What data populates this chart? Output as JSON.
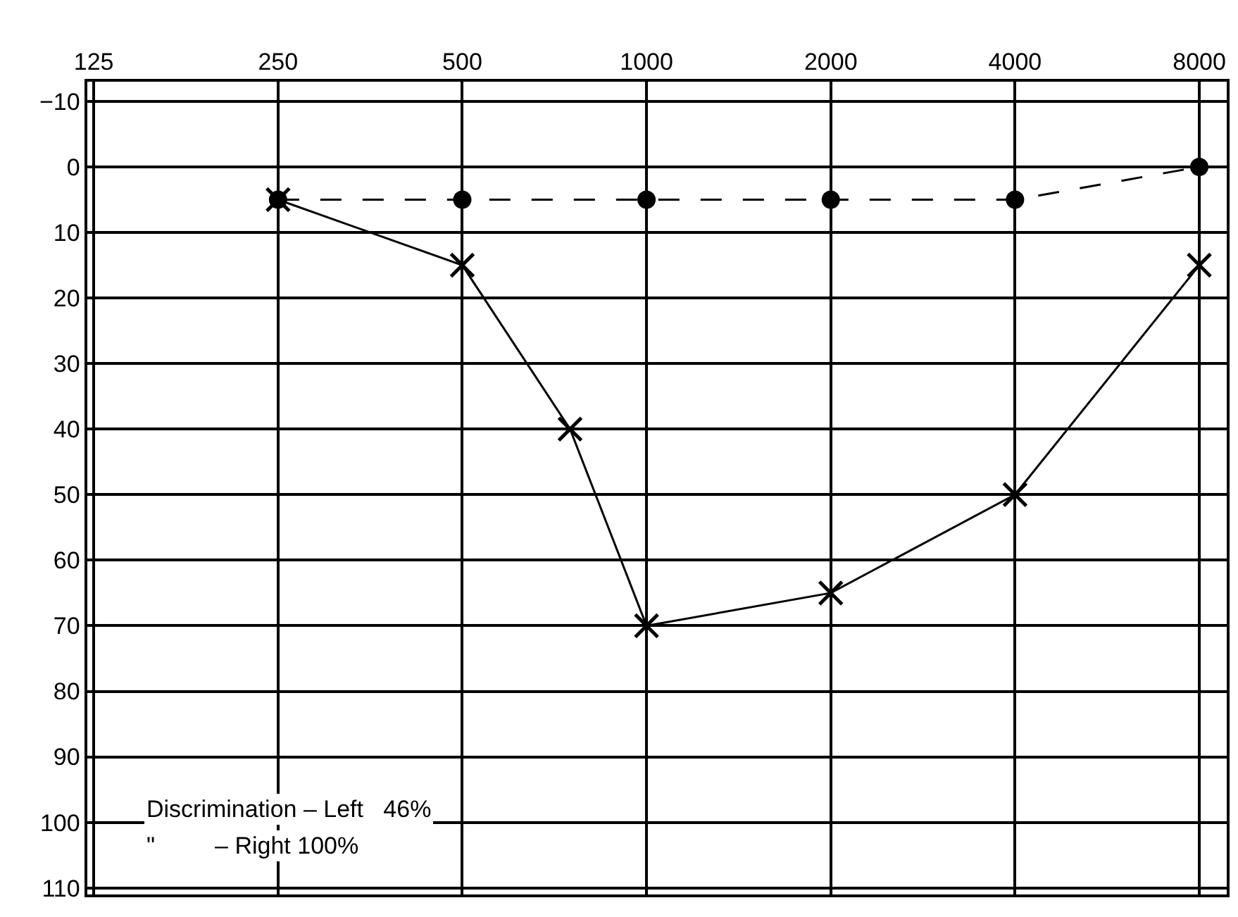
{
  "chart_data": {
    "type": "line",
    "x": [
      250,
      500,
      1000,
      2000,
      4000,
      8000
    ],
    "series": [
      {
        "color": "#000000",
        "marker": "circle",
        "line_style": "dashed",
        "values": [
          5,
          5,
          5,
          5,
          5,
          0
        ]
      },
      {
        "color": "#000000",
        "marker": "cross",
        "line_style": "solid",
        "x": [
          250,
          500,
          750,
          1000,
          2000,
          4000,
          8000
        ],
        "values": [
          5,
          15,
          40,
          70,
          65,
          50,
          15
        ]
      }
    ],
    "log": "x",
    "xlim": [
      122,
      8870
    ],
    "xticks": [
      125,
      250,
      500,
      1000,
      2000,
      4000,
      8000
    ],
    "ylim": [
      111,
      -13
    ],
    "yticks": [
      -10,
      0,
      10,
      20,
      30,
      40,
      50,
      60,
      70,
      80,
      90,
      100,
      110
    ],
    "grid": true,
    "annotations": [
      "Discrimination – Left   46%",
      "\"         – Right 100%"
    ]
  }
}
